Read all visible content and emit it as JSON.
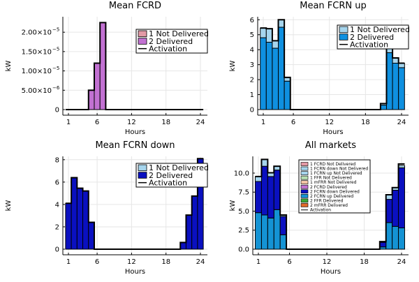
{
  "chart_data": [
    {
      "type": "bar",
      "title": "Mean FCRD",
      "xlabel": "Hours",
      "ylabel": "kW",
      "xlim": [
        1,
        24
      ],
      "ylim": [
        0,
        2.4e-05
      ],
      "xticks": [
        1,
        6,
        12,
        18,
        24
      ],
      "xtick_labels": [
        "1",
        "6",
        "12",
        "18",
        "24"
      ],
      "yticks": [
        0,
        5e-06,
        1e-05,
        1.5e-05,
        2e-05
      ],
      "ytick_labels": [
        "0",
        "5.00×10",
        "1.00×10",
        "1.50×10",
        "2.00×10"
      ],
      "ytick_exponents": [
        "",
        "−6",
        "−5",
        "−5",
        "−5"
      ],
      "grid": true,
      "legend_position": "top-right",
      "hours": [
        1,
        2,
        3,
        4,
        5,
        6,
        7,
        8,
        9,
        10,
        11,
        12,
        13,
        14,
        15,
        16,
        17,
        18,
        19,
        20,
        21,
        22,
        23,
        24
      ],
      "series": [
        {
          "name": "1 Not Delivered",
          "color": "#e39aa6",
          "values": [
            0,
            0,
            0,
            0,
            0,
            0,
            0,
            0,
            0,
            0,
            0,
            0,
            0,
            0,
            0,
            0,
            0,
            0,
            0,
            0,
            0,
            0,
            0,
            0
          ]
        },
        {
          "name": "2 Delivered",
          "color": "#c271d2",
          "values": [
            0,
            0,
            0,
            0,
            5e-06,
            1.2e-05,
            2.25e-05,
            0,
            0,
            0,
            0,
            0,
            0,
            0,
            0,
            0,
            0,
            0,
            0,
            0,
            0,
            0,
            0,
            0
          ]
        }
      ],
      "line": {
        "name": "Activation",
        "color": "#000000",
        "values": [
          0,
          0,
          0,
          0,
          5e-06,
          1.2e-05,
          2.25e-05,
          0,
          0,
          0,
          0,
          0,
          0,
          0,
          0,
          0,
          0,
          0,
          0,
          0,
          0,
          0,
          0,
          0
        ]
      }
    },
    {
      "type": "bar",
      "title": "Mean FCRN up",
      "xlabel": "Hours",
      "ylabel": "kW",
      "xlim": [
        1,
        24
      ],
      "ylim": [
        0,
        6.2
      ],
      "xticks": [
        1,
        6,
        12,
        18,
        24
      ],
      "xtick_labels": [
        "1",
        "6",
        "12",
        "18",
        "24"
      ],
      "yticks": [
        0,
        1,
        2,
        3,
        4,
        5,
        6
      ],
      "ytick_labels": [
        "0",
        "1",
        "2",
        "3",
        "4",
        "5",
        "6"
      ],
      "grid": true,
      "legend_position": "top-right",
      "hours": [
        1,
        2,
        3,
        4,
        5,
        6,
        7,
        8,
        9,
        10,
        11,
        12,
        13,
        14,
        15,
        16,
        17,
        18,
        19,
        20,
        21,
        22,
        23,
        24
      ],
      "series": [
        {
          "name": "2 Delivered",
          "color": "#0f90e0",
          "values": [
            4.8,
            4.5,
            4.1,
            5.5,
            1.9,
            0,
            0,
            0,
            0,
            0,
            0,
            0,
            0,
            0,
            0,
            0,
            0,
            0,
            0,
            0,
            0.3,
            3.8,
            3.1,
            2.8
          ]
        },
        {
          "name": "1 Not Delivered",
          "color": "#a6d5ed",
          "values": [
            0.65,
            0.9,
            0.5,
            0.5,
            0.25,
            0,
            0,
            0,
            0,
            0,
            0,
            0,
            0,
            0,
            0,
            0,
            0,
            0,
            0,
            0,
            0.1,
            0.6,
            0.35,
            0.3
          ]
        }
      ],
      "line": {
        "name": "Activation",
        "color": "#000000",
        "values": [
          5.45,
          5.4,
          4.6,
          6.0,
          2.15,
          0,
          0,
          0,
          0,
          0,
          0,
          0,
          0,
          0,
          0,
          0,
          0,
          0,
          0,
          0,
          0.4,
          4.4,
          3.45,
          3.1
        ]
      }
    },
    {
      "type": "bar",
      "title": "Mean FCRN down",
      "xlabel": "Hours",
      "ylabel": "kW",
      "xlim": [
        1,
        24
      ],
      "ylim": [
        0,
        8.3
      ],
      "xticks": [
        1,
        6,
        12,
        18,
        24
      ],
      "xtick_labels": [
        "1",
        "6",
        "12",
        "18",
        "24"
      ],
      "yticks": [
        0,
        2,
        4,
        6,
        8
      ],
      "ytick_labels": [
        "0",
        "2",
        "4",
        "6",
        "8"
      ],
      "grid": true,
      "legend_position": "top-right",
      "hours": [
        1,
        2,
        3,
        4,
        5,
        6,
        7,
        8,
        9,
        10,
        11,
        12,
        13,
        14,
        15,
        16,
        17,
        18,
        19,
        20,
        21,
        22,
        23,
        24
      ],
      "series": [
        {
          "name": "2 Delivered",
          "color": "#0a10c0",
          "values": [
            4.1,
            6.4,
            5.45,
            5.2,
            2.4,
            0,
            0,
            0,
            0,
            0,
            0,
            0,
            0,
            0,
            0,
            0,
            0,
            0,
            0,
            0,
            0.6,
            3.05,
            4.75,
            8.1
          ]
        },
        {
          "name": "1 Not Delivered",
          "color": "#a6d5ed",
          "values": [
            0,
            0,
            0,
            0,
            0,
            0,
            0,
            0,
            0,
            0,
            0,
            0,
            0,
            0,
            0,
            0,
            0,
            0,
            0,
            0,
            0,
            0,
            0,
            0
          ]
        }
      ],
      "line": {
        "name": "Activation",
        "color": "#000000",
        "values": [
          4.1,
          6.4,
          5.45,
          5.2,
          2.4,
          0,
          0,
          0,
          0,
          0,
          0,
          0,
          0,
          0,
          0,
          0,
          0,
          0,
          0,
          0,
          0.6,
          3.05,
          4.75,
          8.1
        ]
      }
    },
    {
      "type": "bar",
      "title": "All markets",
      "xlabel": "Hours",
      "ylabel": "kW",
      "xlim": [
        1,
        24
      ],
      "ylim": [
        0,
        12.2
      ],
      "xticks": [
        1,
        6,
        12,
        18,
        24
      ],
      "xtick_labels": [
        "1",
        "6",
        "12",
        "18",
        "24"
      ],
      "yticks": [
        0,
        2.5,
        5,
        7.5,
        10
      ],
      "ytick_labels": [
        "0.0",
        "2.5",
        "5.0",
        "7.5",
        "10.0"
      ],
      "grid": true,
      "legend_position": "top-right",
      "hours": [
        1,
        2,
        3,
        4,
        5,
        6,
        7,
        8,
        9,
        10,
        11,
        12,
        13,
        14,
        15,
        16,
        17,
        18,
        19,
        20,
        21,
        22,
        23,
        24
      ],
      "series": [
        {
          "name": "2 FCRN up Delivered",
          "color": "#1493d4",
          "values": [
            4.8,
            4.5,
            4.1,
            5.2,
            1.9,
            0,
            0,
            0,
            0,
            0,
            0,
            0,
            0,
            0,
            0,
            0,
            0,
            0,
            0,
            0,
            0.3,
            3.5,
            3.0,
            2.8
          ]
        },
        {
          "name": "2 FCRN down Delivered",
          "color": "#0a10c0",
          "values": [
            4.1,
            6.4,
            5.45,
            5.2,
            2.4,
            0,
            0,
            0,
            0,
            0,
            0,
            0,
            0,
            0,
            0,
            0,
            0,
            0,
            0,
            0,
            0.6,
            3.05,
            4.75,
            7.9
          ]
        },
        {
          "name": "1 FCRN up Not Delivered",
          "color": "#a6d5ed",
          "values": [
            0.65,
            0.9,
            0.5,
            0.5,
            0.2,
            0,
            0,
            0,
            0,
            0,
            0,
            0,
            0,
            0,
            0,
            0,
            0,
            0,
            0,
            0,
            0.1,
            0.6,
            0.35,
            0.3
          ]
        },
        {
          "name": "1 FCRD Not Delivered",
          "color": "#e39aa6",
          "values": [
            0,
            0,
            0,
            0,
            0,
            0,
            0,
            0,
            0,
            0,
            0,
            0,
            0,
            0,
            0,
            0,
            0,
            0,
            0,
            0,
            0,
            0,
            0,
            0
          ]
        },
        {
          "name": "1 FCRN down Not Delivered",
          "color": "#a6d5ed",
          "values": [
            0,
            0,
            0,
            0,
            0,
            0,
            0,
            0,
            0,
            0,
            0,
            0,
            0,
            0,
            0,
            0,
            0,
            0,
            0,
            0,
            0,
            0,
            0,
            0
          ]
        },
        {
          "name": "1 FFR Not Delivered",
          "color": "#b7e0b2",
          "values": [
            0,
            0,
            0,
            0,
            0,
            0,
            0,
            0,
            0,
            0,
            0,
            0,
            0,
            0,
            0,
            0,
            0,
            0,
            0,
            0,
            0,
            0,
            0,
            0
          ]
        },
        {
          "name": "1 mFRR Not Delivered",
          "color": "#f3c5a6",
          "values": [
            0,
            0,
            0,
            0,
            0,
            0,
            0,
            0,
            0,
            0,
            0,
            0,
            0,
            0,
            0,
            0,
            0,
            0,
            0,
            0,
            0,
            0,
            0,
            0
          ]
        },
        {
          "name": "2 FCRD Delivered",
          "color": "#c271d2",
          "values": [
            0,
            0,
            0,
            0,
            0,
            0,
            0,
            0,
            0,
            0,
            0,
            0,
            0,
            0,
            0,
            0,
            0,
            0,
            0,
            0,
            0,
            0,
            0,
            0
          ]
        },
        {
          "name": "2 FFR Delivered",
          "color": "#3aa836",
          "values": [
            0,
            0,
            0,
            0,
            0,
            0,
            0,
            0,
            0,
            0,
            0,
            0,
            0,
            0,
            0,
            0,
            0,
            0,
            0,
            0,
            0,
            0,
            0,
            0
          ]
        },
        {
          "name": "2 mFRR Delivered",
          "color": "#e06a2a",
          "values": [
            0,
            0,
            0,
            0,
            0,
            0,
            0,
            0,
            0,
            0,
            0,
            0,
            0,
            0,
            0,
            0,
            0,
            0,
            0,
            0,
            0,
            0,
            0,
            0
          ]
        }
      ],
      "line": {
        "name": "Activation",
        "color": "#000000",
        "values": [
          9.55,
          11.8,
          10.05,
          10.9,
          4.5,
          0,
          0,
          0,
          0,
          0,
          0,
          0,
          0,
          0,
          0,
          0,
          0,
          0,
          0,
          0,
          1.0,
          7.15,
          8.1,
          11.2
        ]
      },
      "legend_entries": [
        {
          "name": "1 FCRD Not Delivered",
          "color": "#e39aa6"
        },
        {
          "name": "1 FCRN down Not Delivered",
          "color": "#a6d5ed"
        },
        {
          "name": "1 FCRN up Not Delivered",
          "color": "#a6d5ed"
        },
        {
          "name": "1 FFR Not Delivered",
          "color": "#b7e0b2"
        },
        {
          "name": "1 mFRR Not Delivered",
          "color": "#f3c5a6"
        },
        {
          "name": "2 FCRD Delivered",
          "color": "#c271d2"
        },
        {
          "name": "2 FCRN down Delivered",
          "color": "#0a10c0"
        },
        {
          "name": "2 FCRN up Delivered",
          "color": "#1493d4"
        },
        {
          "name": "2 FFR Delivered",
          "color": "#3aa836"
        },
        {
          "name": "2 mFRR Delivered",
          "color": "#e06a2a"
        }
      ]
    }
  ],
  "legends": {
    "fcrd": [
      "1 Not Delivered",
      "2 Delivered",
      "Activation"
    ],
    "fcrn_up": [
      "1 Not Delivered",
      "2 Delivered",
      "Activation"
    ],
    "fcrn_down": [
      "1 Not Delivered",
      "2 Delivered",
      "Activation"
    ],
    "all_activation": "Activation"
  }
}
